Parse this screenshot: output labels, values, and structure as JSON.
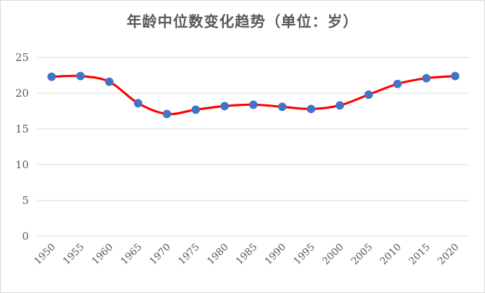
{
  "chart_data": {
    "type": "line",
    "title": "年龄中位数变化趋势（单位：岁）",
    "xlabel": "",
    "ylabel": "",
    "x": [
      "1950",
      "1955",
      "1960",
      "1965",
      "1970",
      "1975",
      "1980",
      "1985",
      "1990",
      "1995",
      "2000",
      "2005",
      "2010",
      "2015",
      "2020"
    ],
    "series": [
      {
        "values": [
          22.3,
          22.4,
          21.6,
          18.6,
          17.1,
          17.7,
          18.2,
          18.4,
          18.1,
          17.8,
          18.3,
          19.8,
          21.3,
          22.1,
          22.4
        ]
      }
    ],
    "ylim": [
      0,
      25
    ],
    "yticks": [
      0,
      5,
      10,
      15,
      20,
      25
    ],
    "grid": true,
    "legend": "none",
    "smooth": true,
    "line_color": "#ff0000",
    "marker_color": "#4472c4"
  }
}
